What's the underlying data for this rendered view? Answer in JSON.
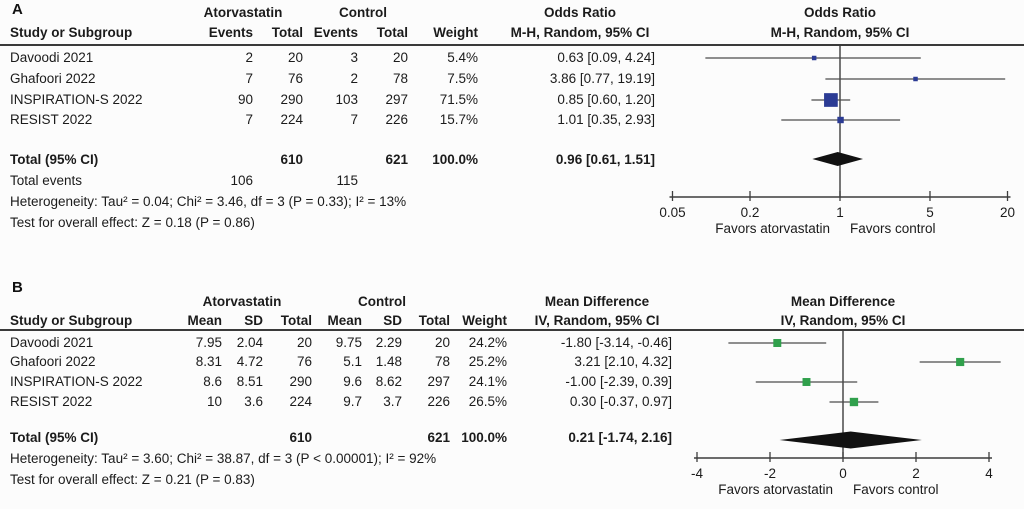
{
  "panels": [
    {
      "label": "A",
      "group1": "Atorvastatin",
      "group2": "Control",
      "col_study": "Study or Subgroup",
      "cols_g1": [
        "Events",
        "Total"
      ],
      "cols_g2": [
        "Events",
        "Total"
      ],
      "col_weight": "Weight",
      "effect_title": "Odds Ratio",
      "effect_sub": "M-H, Random, 95% CI",
      "rows": [
        {
          "study": "Davoodi 2021",
          "v1": "2",
          "v2": "20",
          "v3": "3",
          "v4": "20",
          "w": "5.4%",
          "eff": "0.63 [0.09, 4.24]"
        },
        {
          "study": "Ghafoori 2022",
          "v1": "7",
          "v2": "76",
          "v3": "2",
          "v4": "78",
          "w": "7.5%",
          "eff": "3.86 [0.77, 19.19]"
        },
        {
          "study": "INSPIRATION-S 2022",
          "v1": "90",
          "v2": "290",
          "v3": "103",
          "v4": "297",
          "w": "71.5%",
          "eff": "0.85 [0.60, 1.20]"
        },
        {
          "study": "RESIST 2022",
          "v1": "7",
          "v2": "224",
          "v3": "7",
          "v4": "226",
          "w": "15.7%",
          "eff": "1.01 [0.35, 2.93]"
        }
      ],
      "total": {
        "label": "Total (95% CI)",
        "t1": "610",
        "t2": "621",
        "w": "100.0%",
        "eff": "0.96 [0.61, 1.51]"
      },
      "total_events": {
        "label": "Total events",
        "v1": "106",
        "v2": "115"
      },
      "heterogeneity": "Heterogeneity: Tau² = 0.04; Chi² = 3.46, df = 3 (P = 0.33); I² = 13%",
      "overall": "Test for overall effect: Z = 0.18 (P = 0.86)"
    },
    {
      "label": "B",
      "group1": "Atorvastatin",
      "group2": "Control",
      "col_study": "Study or Subgroup",
      "cols_g1": [
        "Mean",
        "SD",
        "Total"
      ],
      "cols_g2": [
        "Mean",
        "SD",
        "Total"
      ],
      "col_weight": "Weight",
      "effect_title": "Mean Difference",
      "effect_sub": "IV, Random, 95% CI",
      "rows": [
        {
          "study": "Davoodi 2021",
          "v1": "7.95",
          "v2": "2.04",
          "v3": "20",
          "v4": "9.75",
          "v5": "2.29",
          "v6": "20",
          "w": "24.2%",
          "eff": "-1.80 [-3.14, -0.46]"
        },
        {
          "study": "Ghafoori 2022",
          "v1": "8.31",
          "v2": "4.72",
          "v3": "76",
          "v4": "5.1",
          "v5": "1.48",
          "v6": "78",
          "w": "25.2%",
          "eff": "3.21 [2.10, 4.32]"
        },
        {
          "study": "INSPIRATION-S 2022",
          "v1": "8.6",
          "v2": "8.51",
          "v3": "290",
          "v4": "9.6",
          "v5": "8.62",
          "v6": "297",
          "w": "24.1%",
          "eff": "-1.00 [-2.39, 0.39]"
        },
        {
          "study": "RESIST 2022",
          "v1": "10",
          "v2": "3.6",
          "v3": "224",
          "v4": "9.7",
          "v5": "3.7",
          "v6": "226",
          "w": "26.5%",
          "eff": "0.30 [-0.37, 0.97]"
        }
      ],
      "total": {
        "label": "Total (95% CI)",
        "t1": "610",
        "t2": "621",
        "w": "100.0%",
        "eff": "0.21 [-1.74, 2.16]"
      },
      "heterogeneity": "Heterogeneity: Tau² = 3.60; Chi² = 38.87, df = 3 (P < 0.00001); I² = 92%",
      "overall": "Test for overall effect: Z = 0.21 (P = 0.83)"
    }
  ],
  "chart_data": [
    {
      "type": "forest",
      "panel": "A",
      "effect_measure": "Odds Ratio",
      "model": "M-H, Random, 95% CI",
      "scale": "log",
      "axis_ticks": [
        0.05,
        0.2,
        1,
        5,
        20
      ],
      "null_line": 1,
      "studies": [
        {
          "name": "Davoodi 2021",
          "estimate": 0.63,
          "ci_low": 0.09,
          "ci_high": 4.24,
          "weight_pct": 5.4
        },
        {
          "name": "Ghafoori 2022",
          "estimate": 3.86,
          "ci_low": 0.77,
          "ci_high": 19.19,
          "weight_pct": 7.5
        },
        {
          "name": "INSPIRATION-S 2022",
          "estimate": 0.85,
          "ci_low": 0.6,
          "ci_high": 1.2,
          "weight_pct": 71.5
        },
        {
          "name": "RESIST 2022",
          "estimate": 1.01,
          "ci_low": 0.35,
          "ci_high": 2.93,
          "weight_pct": 15.7
        }
      ],
      "total": {
        "estimate": 0.96,
        "ci_low": 0.61,
        "ci_high": 1.51
      },
      "favors_left": "Favors atorvastatin",
      "favors_right": "Favors control",
      "marker_color": "#2b3b94",
      "diamond_color": "#111111"
    },
    {
      "type": "forest",
      "panel": "B",
      "effect_measure": "Mean Difference",
      "model": "IV, Random, 95% CI",
      "scale": "linear",
      "axis_ticks": [
        -4,
        -2,
        0,
        2,
        4
      ],
      "null_line": 0,
      "studies": [
        {
          "name": "Davoodi 2021",
          "estimate": -1.8,
          "ci_low": -3.14,
          "ci_high": -0.46,
          "weight_pct": 24.2
        },
        {
          "name": "Ghafoori 2022",
          "estimate": 3.21,
          "ci_low": 2.1,
          "ci_high": 4.32,
          "weight_pct": 25.2
        },
        {
          "name": "INSPIRATION-S 2022",
          "estimate": -1.0,
          "ci_low": -2.39,
          "ci_high": 0.39,
          "weight_pct": 24.1
        },
        {
          "name": "RESIST 2022",
          "estimate": 0.3,
          "ci_low": -0.37,
          "ci_high": 0.97,
          "weight_pct": 26.5
        }
      ],
      "total": {
        "estimate": 0.21,
        "ci_low": -1.74,
        "ci_high": 2.16
      },
      "favors_left": "Favors atorvastatin",
      "favors_right": "Favors control",
      "marker_color": "#30a04c",
      "diamond_color": "#111111"
    }
  ]
}
